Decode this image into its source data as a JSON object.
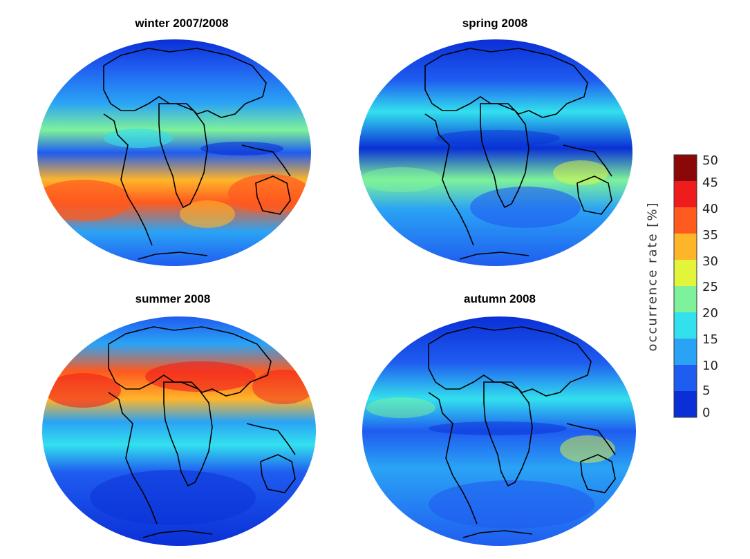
{
  "panels": [
    {
      "title": "winter 2007/2008",
      "season": "winter"
    },
    {
      "title": "spring 2008",
      "season": "spring"
    },
    {
      "title": "summer 2008",
      "season": "summer"
    },
    {
      "title": "autumn 2008",
      "season": "autumn"
    }
  ],
  "colorbar": {
    "title": "occurrence  rate  [%]",
    "ticks": [
      "0",
      "5",
      "10",
      "15",
      "20",
      "25",
      "30",
      "35",
      "40",
      "45",
      "50"
    ],
    "colors": [
      "#0a2fd6",
      "#1f5cf0",
      "#2aa3f5",
      "#33e0ee",
      "#7ef29a",
      "#e2f53b",
      "#ffb52a",
      "#ff5a1f",
      "#ee1c1c",
      "#8a0808"
    ]
  }
}
